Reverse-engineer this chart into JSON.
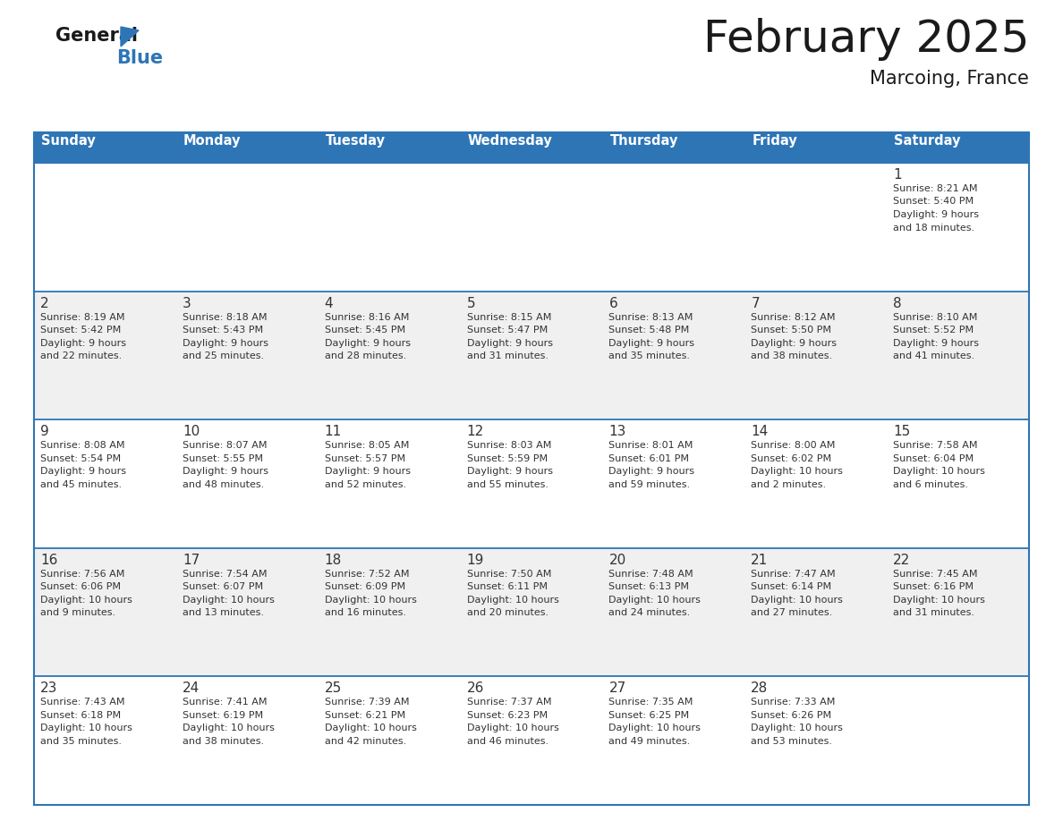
{
  "title": "February 2025",
  "subtitle": "Marcoing, France",
  "header_bg": "#2E75B6",
  "header_text_color": "#FFFFFF",
  "cell_bg_white": "#FFFFFF",
  "cell_bg_light": "#F0F0F0",
  "day_number_color": "#333333",
  "cell_text_color": "#333333",
  "border_color": "#2E75B6",
  "days_of_week": [
    "Sunday",
    "Monday",
    "Tuesday",
    "Wednesday",
    "Thursday",
    "Friday",
    "Saturday"
  ],
  "calendar_data": [
    [
      null,
      null,
      null,
      null,
      null,
      null,
      {
        "day": 1,
        "sunrise": "8:21 AM",
        "sunset": "5:40 PM",
        "daylight": "9 hours\nand 18 minutes."
      }
    ],
    [
      {
        "day": 2,
        "sunrise": "8:19 AM",
        "sunset": "5:42 PM",
        "daylight": "9 hours\nand 22 minutes."
      },
      {
        "day": 3,
        "sunrise": "8:18 AM",
        "sunset": "5:43 PM",
        "daylight": "9 hours\nand 25 minutes."
      },
      {
        "day": 4,
        "sunrise": "8:16 AM",
        "sunset": "5:45 PM",
        "daylight": "9 hours\nand 28 minutes."
      },
      {
        "day": 5,
        "sunrise": "8:15 AM",
        "sunset": "5:47 PM",
        "daylight": "9 hours\nand 31 minutes."
      },
      {
        "day": 6,
        "sunrise": "8:13 AM",
        "sunset": "5:48 PM",
        "daylight": "9 hours\nand 35 minutes."
      },
      {
        "day": 7,
        "sunrise": "8:12 AM",
        "sunset": "5:50 PM",
        "daylight": "9 hours\nand 38 minutes."
      },
      {
        "day": 8,
        "sunrise": "8:10 AM",
        "sunset": "5:52 PM",
        "daylight": "9 hours\nand 41 minutes."
      }
    ],
    [
      {
        "day": 9,
        "sunrise": "8:08 AM",
        "sunset": "5:54 PM",
        "daylight": "9 hours\nand 45 minutes."
      },
      {
        "day": 10,
        "sunrise": "8:07 AM",
        "sunset": "5:55 PM",
        "daylight": "9 hours\nand 48 minutes."
      },
      {
        "day": 11,
        "sunrise": "8:05 AM",
        "sunset": "5:57 PM",
        "daylight": "9 hours\nand 52 minutes."
      },
      {
        "day": 12,
        "sunrise": "8:03 AM",
        "sunset": "5:59 PM",
        "daylight": "9 hours\nand 55 minutes."
      },
      {
        "day": 13,
        "sunrise": "8:01 AM",
        "sunset": "6:01 PM",
        "daylight": "9 hours\nand 59 minutes."
      },
      {
        "day": 14,
        "sunrise": "8:00 AM",
        "sunset": "6:02 PM",
        "daylight": "10 hours\nand 2 minutes."
      },
      {
        "day": 15,
        "sunrise": "7:58 AM",
        "sunset": "6:04 PM",
        "daylight": "10 hours\nand 6 minutes."
      }
    ],
    [
      {
        "day": 16,
        "sunrise": "7:56 AM",
        "sunset": "6:06 PM",
        "daylight": "10 hours\nand 9 minutes."
      },
      {
        "day": 17,
        "sunrise": "7:54 AM",
        "sunset": "6:07 PM",
        "daylight": "10 hours\nand 13 minutes."
      },
      {
        "day": 18,
        "sunrise": "7:52 AM",
        "sunset": "6:09 PM",
        "daylight": "10 hours\nand 16 minutes."
      },
      {
        "day": 19,
        "sunrise": "7:50 AM",
        "sunset": "6:11 PM",
        "daylight": "10 hours\nand 20 minutes."
      },
      {
        "day": 20,
        "sunrise": "7:48 AM",
        "sunset": "6:13 PM",
        "daylight": "10 hours\nand 24 minutes."
      },
      {
        "day": 21,
        "sunrise": "7:47 AM",
        "sunset": "6:14 PM",
        "daylight": "10 hours\nand 27 minutes."
      },
      {
        "day": 22,
        "sunrise": "7:45 AM",
        "sunset": "6:16 PM",
        "daylight": "10 hours\nand 31 minutes."
      }
    ],
    [
      {
        "day": 23,
        "sunrise": "7:43 AM",
        "sunset": "6:18 PM",
        "daylight": "10 hours\nand 35 minutes."
      },
      {
        "day": 24,
        "sunrise": "7:41 AM",
        "sunset": "6:19 PM",
        "daylight": "10 hours\nand 38 minutes."
      },
      {
        "day": 25,
        "sunrise": "7:39 AM",
        "sunset": "6:21 PM",
        "daylight": "10 hours\nand 42 minutes."
      },
      {
        "day": 26,
        "sunrise": "7:37 AM",
        "sunset": "6:23 PM",
        "daylight": "10 hours\nand 46 minutes."
      },
      {
        "day": 27,
        "sunrise": "7:35 AM",
        "sunset": "6:25 PM",
        "daylight": "10 hours\nand 49 minutes."
      },
      {
        "day": 28,
        "sunrise": "7:33 AM",
        "sunset": "6:26 PM",
        "daylight": "10 hours\nand 53 minutes."
      },
      null
    ]
  ],
  "logo_general_color": "#1a1a1a",
  "logo_blue_color": "#2E75B6",
  "figsize": [
    11.88,
    9.18
  ],
  "dpi": 100
}
